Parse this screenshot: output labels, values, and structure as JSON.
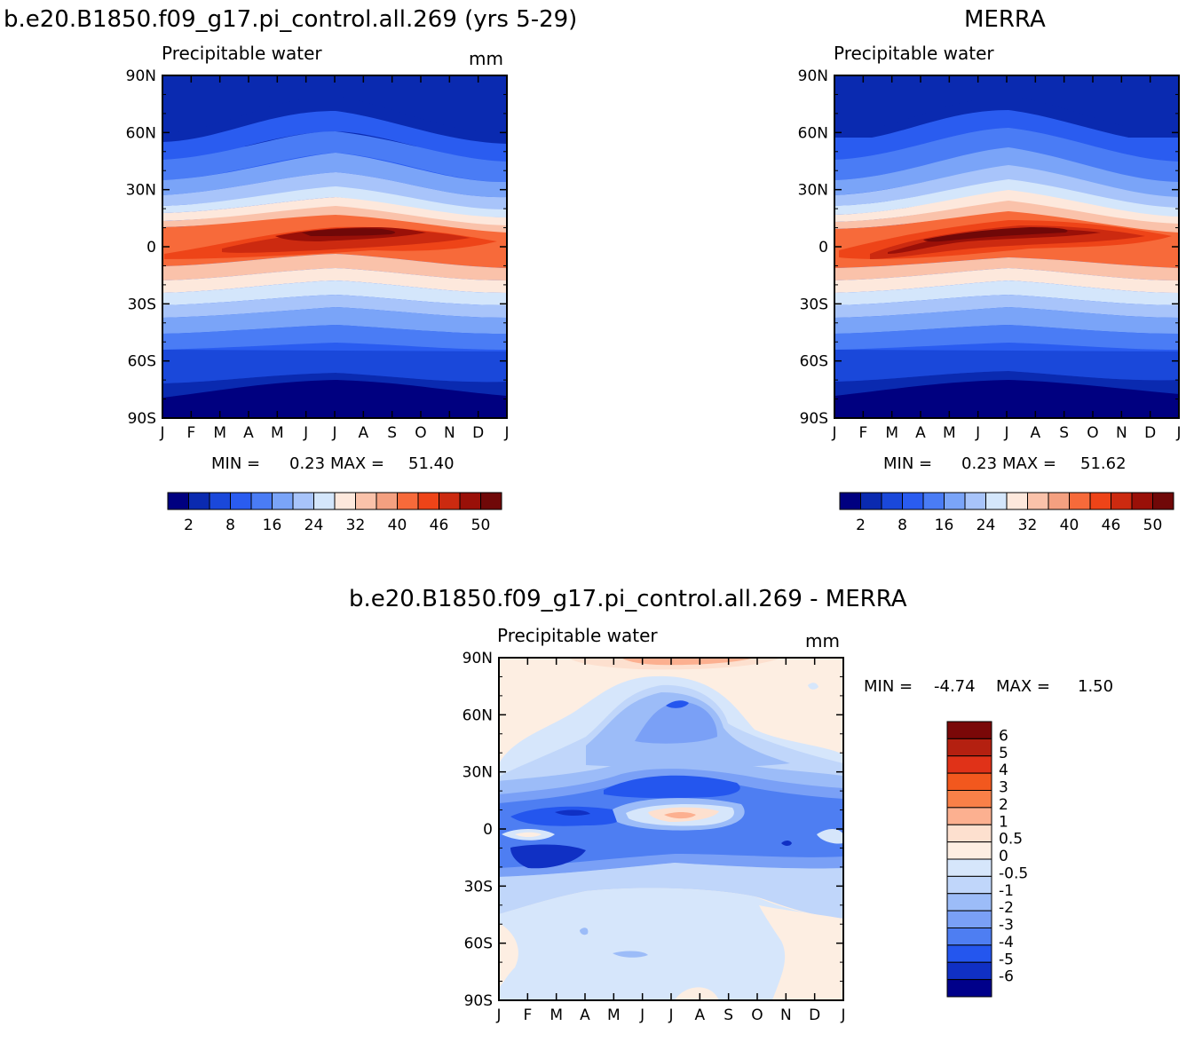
{
  "chart_data": [
    {
      "type": "heatmap",
      "id": "model",
      "title": "b.e20.B1850.f09_g17.pi_control.all.269 (yrs 5-29)",
      "subtitle": "Precipitable water",
      "units": "mm",
      "x_ticks": [
        "J",
        "F",
        "M",
        "A",
        "M",
        "J",
        "J",
        "A",
        "S",
        "O",
        "N",
        "D",
        "J"
      ],
      "y_ticks": [
        "90N",
        "60N",
        "30N",
        "0",
        "30S",
        "60S",
        "90S"
      ],
      "ylim": [
        -90,
        90
      ],
      "stats": {
        "min_label": "MIN =",
        "min": "0.23",
        "max_label": "MAX =",
        "max": "51.40"
      },
      "colorbar": {
        "colors": [
          "#000080",
          "#0a2ab0",
          "#1a48da",
          "#2a5cf0",
          "#4a7cf5",
          "#7aa4f8",
          "#a8c4fa",
          "#d4e6fb",
          "#fde8dc",
          "#fac2aa",
          "#f4a080",
          "#f76a3a",
          "#ee4418",
          "#cc2a10",
          "#9a1008",
          "#700808"
        ],
        "tick_labels": [
          "2",
          "8",
          "16",
          "24",
          "32",
          "40",
          "46",
          "50"
        ]
      }
    },
    {
      "type": "heatmap",
      "id": "merra",
      "title": "MERRA",
      "subtitle": "Precipitable water",
      "units": "",
      "x_ticks": [
        "J",
        "F",
        "M",
        "A",
        "M",
        "J",
        "J",
        "A",
        "S",
        "O",
        "N",
        "D",
        "J"
      ],
      "y_ticks": [
        "90N",
        "60N",
        "30N",
        "0",
        "30S",
        "60S",
        "90S"
      ],
      "ylim": [
        -90,
        90
      ],
      "stats": {
        "min_label": "MIN =",
        "min": "0.23",
        "max_label": "MAX =",
        "max": "51.62"
      },
      "colorbar": {
        "colors": [
          "#000080",
          "#0a2ab0",
          "#1a48da",
          "#2a5cf0",
          "#4a7cf5",
          "#7aa4f8",
          "#a8c4fa",
          "#d4e6fb",
          "#fde8dc",
          "#fac2aa",
          "#f4a080",
          "#f76a3a",
          "#ee4418",
          "#cc2a10",
          "#9a1008",
          "#700808"
        ],
        "tick_labels": [
          "2",
          "8",
          "16",
          "24",
          "32",
          "40",
          "46",
          "50"
        ]
      }
    },
    {
      "type": "heatmap",
      "id": "diff",
      "title": "b.e20.B1850.f09_g17.pi_control.all.269 - MERRA",
      "subtitle": "Precipitable water",
      "units": "mm",
      "x_ticks": [
        "J",
        "F",
        "M",
        "A",
        "M",
        "J",
        "J",
        "A",
        "S",
        "O",
        "N",
        "D",
        "J"
      ],
      "y_ticks": [
        "90N",
        "60N",
        "30N",
        "0",
        "30S",
        "60S",
        "90S"
      ],
      "ylim": [
        -90,
        90
      ],
      "stats": {
        "min_label": "MIN =",
        "min": "-4.74",
        "max_label": "MAX =",
        "max": "1.50"
      },
      "colorbar": {
        "colors": [
          "#7a0808",
          "#b42010",
          "#e03218",
          "#f2581e",
          "#f98048",
          "#fcb090",
          "#fde0cf",
          "#fdeee2",
          "#d6e6fb",
          "#c0d6fa",
          "#9cbcf8",
          "#7aa0f6",
          "#4e7ef2",
          "#2456ee",
          "#1030c4",
          "#00008a"
        ],
        "tick_labels": [
          "6",
          "5",
          "4",
          "3",
          "2",
          "1",
          "0.5",
          "0",
          "-0.5",
          "-1",
          "-2",
          "-3",
          "-4",
          "-5",
          "-6"
        ]
      }
    }
  ]
}
